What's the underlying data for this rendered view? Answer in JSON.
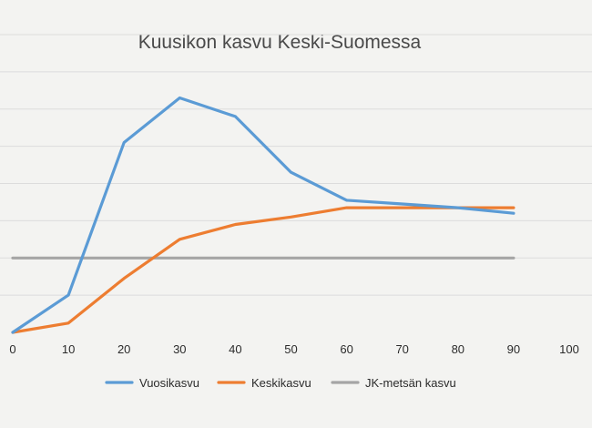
{
  "chart_data": {
    "type": "line",
    "title": "Kuusikon kasvu Keski-Suomessa",
    "x_ticks": [
      0,
      10,
      20,
      30,
      40,
      50,
      60,
      70,
      80,
      90,
      100
    ],
    "xlim": [
      0,
      100
    ],
    "ylim": [
      0,
      8
    ],
    "grid": true,
    "legend_position": "bottom",
    "series": [
      {
        "name": "Vuosikasvu",
        "color": "#5b9bd5",
        "x": [
          0,
          10,
          20,
          30,
          40,
          50,
          60,
          70,
          80,
          90
        ],
        "y": [
          0,
          1.0,
          5.1,
          6.3,
          5.8,
          4.3,
          3.55,
          3.45,
          3.35,
          3.2
        ]
      },
      {
        "name": "Keskikasvu",
        "color": "#ed7d31",
        "x": [
          0,
          10,
          20,
          30,
          40,
          50,
          60,
          70,
          80,
          90
        ],
        "y": [
          0,
          0.25,
          1.45,
          2.5,
          2.9,
          3.1,
          3.35,
          3.35,
          3.35,
          3.35
        ]
      },
      {
        "name": "JK-metsän kasvu",
        "color": "#a5a5a5",
        "x": [
          0,
          90
        ],
        "y": [
          2.0,
          2.0
        ]
      }
    ]
  }
}
